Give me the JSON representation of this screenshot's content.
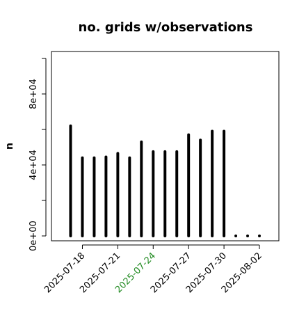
{
  "chart_data": {
    "type": "bar",
    "title": "no. grids w/observations",
    "xlabel": "",
    "ylabel": "n",
    "x_tick_labels": [
      "2025-07-18",
      "2025-07-21",
      "2025-07-24",
      "2025-07-27",
      "2025-07-30",
      "2025-08-02"
    ],
    "highlight_tick": "2025-07-24",
    "highlight_color": "#228b22",
    "y_tick_labels": [
      "0e+00",
      "4e+04",
      "8e+04"
    ],
    "y_ticks": [
      0,
      20000,
      40000,
      60000,
      80000,
      100000
    ],
    "ylim": [
      0,
      100000
    ],
    "x": [
      "2025-07-17",
      "2025-07-18",
      "2025-07-19",
      "2025-07-20",
      "2025-07-21",
      "2025-07-22",
      "2025-07-23",
      "2025-07-24",
      "2025-07-25",
      "2025-07-26",
      "2025-07-27",
      "2025-07-28",
      "2025-07-29",
      "2025-07-30",
      "2025-07-31",
      "2025-08-01",
      "2025-08-02"
    ],
    "values": [
      62000,
      44000,
      44000,
      44500,
      46500,
      44000,
      53000,
      47500,
      47500,
      47500,
      57000,
      54000,
      59000,
      59000,
      0,
      0,
      0
    ],
    "grid": false,
    "bar_color": "#000000"
  }
}
